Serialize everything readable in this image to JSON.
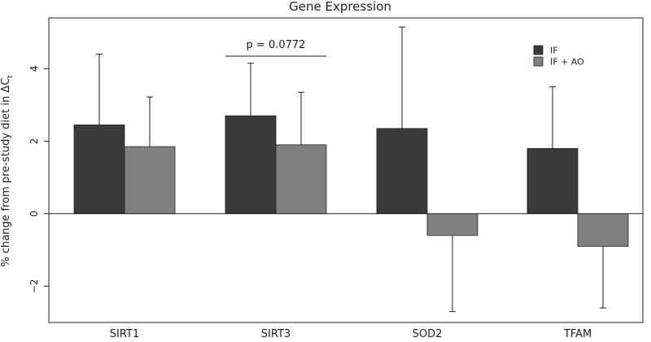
{
  "chart_data": {
    "type": "bar",
    "title": "Gene Expression",
    "ylabel_main": "% change from pre-study diet in  ΔC",
    "ylabel_sub": "t",
    "xlabel": "",
    "categories": [
      "SIRT1",
      "SIRT3",
      "SOD2",
      "TFAM"
    ],
    "series": [
      {
        "name": "IF",
        "color": "#3b3b3b",
        "values": [
          2.45,
          2.7,
          2.35,
          1.8
        ],
        "error_upper": [
          4.4,
          4.15,
          5.15,
          3.5
        ]
      },
      {
        "name": "IF + AO",
        "color": "#808080",
        "values": [
          1.85,
          1.9,
          -0.6,
          -0.9
        ],
        "error_upper": [
          3.22,
          3.35,
          -2.7,
          -2.6
        ]
      }
    ],
    "ylim": [
      -3,
      5.4
    ],
    "yticks": [
      -2,
      0,
      2,
      4
    ],
    "ytick_labels": [
      "−2",
      "0",
      "2",
      "4"
    ],
    "legend_position": "top-right",
    "annotation": {
      "text": "p = 0.0772",
      "category": "SIRT3"
    }
  }
}
